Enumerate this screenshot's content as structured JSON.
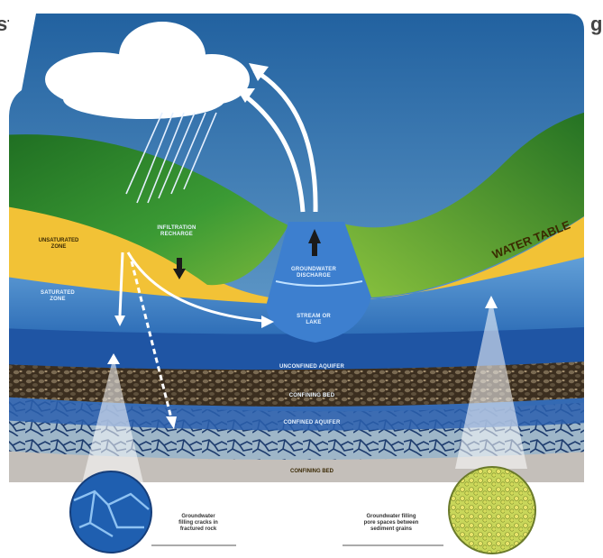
{
  "labels": {
    "unsaturated_zone": "unsaturated\nzone",
    "saturated_zone": "saturated\nzone",
    "infiltration": "infiltration\nrecharge",
    "discharge": "groundwater\ndischarge",
    "stream_lake": "stream or\nlake",
    "water_table": "WATER TABLE",
    "unconfined_aquifer": "unconfined aquifer",
    "confining_bed": "confining bed",
    "confined_aquifer": "confined aquifer",
    "bottom_bed": "confining bed",
    "caption_left": "Groundwater\nfilling cracks in\nfractured rock",
    "caption_right": "Groundwater filling\npore spaces between\nsediment grains"
  },
  "colors": {
    "sky_top": "#1f5f9e",
    "sky_bottom": "#7fb6dd",
    "grass": "#2f8a2c",
    "sand": "#f2c236",
    "saturated": "#4b8fd0",
    "aquifer": "#2a5fae",
    "gravel": "#4a3a26"
  },
  "edge_glyphs": {
    "left": "st",
    "right": "gr"
  }
}
